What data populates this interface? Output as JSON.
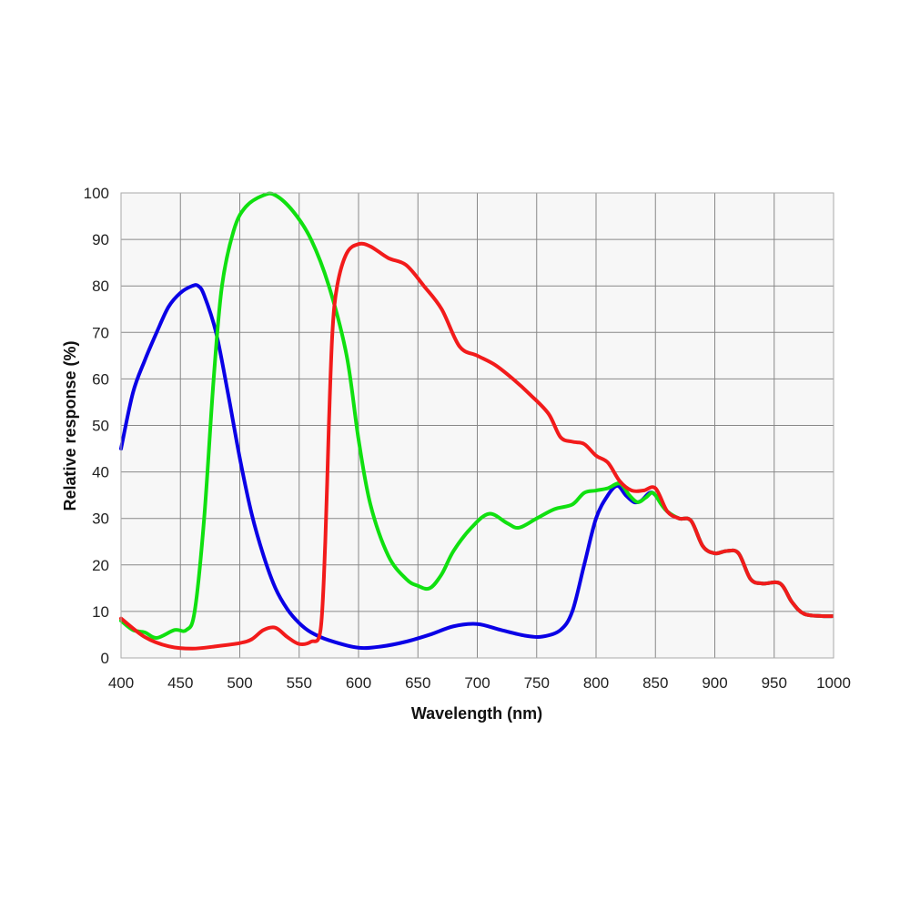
{
  "chart_data": {
    "type": "line",
    "title": "",
    "xlabel": "Wavelength (nm)",
    "ylabel": "Relative response (%)",
    "xlim": [
      400,
      1000
    ],
    "ylim": [
      0,
      100
    ],
    "xticks": [
      400,
      450,
      500,
      550,
      600,
      650,
      700,
      750,
      800,
      850,
      900,
      950,
      1000
    ],
    "yticks": [
      0,
      10,
      20,
      30,
      40,
      50,
      60,
      70,
      80,
      90,
      100
    ],
    "grid": true,
    "legend": null,
    "plot_background": "#f7f7f7",
    "grid_color": "#888888",
    "series": [
      {
        "name": "Blue",
        "color": "#0a00e6",
        "x": [
          400,
          410,
          420,
          430,
          440,
          450,
          460,
          465,
          470,
          480,
          490,
          500,
          510,
          520,
          530,
          540,
          550,
          560,
          575,
          600,
          620,
          640,
          660,
          680,
          700,
          720,
          740,
          755,
          770,
          780,
          790,
          800,
          810,
          818,
          825,
          832,
          838,
          845,
          850,
          860,
          870,
          880,
          890,
          900,
          910,
          920,
          930,
          940,
          955,
          965,
          975,
          990,
          1000
        ],
        "y": [
          45,
          57,
          64,
          70,
          75.5,
          78.5,
          80,
          80,
          78,
          70,
          57,
          43,
          31,
          22,
          15,
          10.5,
          7.5,
          5.5,
          3.8,
          2.2,
          2.5,
          3.5,
          5,
          6.8,
          7.3,
          6,
          4.8,
          4.6,
          6,
          10,
          20,
          30,
          35,
          37,
          35,
          33.5,
          33.8,
          35.5,
          35,
          31.5,
          30,
          29.5,
          24,
          22.5,
          23,
          22.5,
          17,
          16,
          16,
          12,
          9.5,
          9,
          9
        ]
      },
      {
        "name": "Green",
        "color": "#10e010",
        "x": [
          400,
          410,
          420,
          430,
          445,
          455,
          462,
          470,
          478,
          485,
          495,
          505,
          520,
          530,
          545,
          560,
          575,
          590,
          600,
          610,
          625,
          640,
          650,
          660,
          670,
          680,
          695,
          710,
          725,
          735,
          750,
          765,
          780,
          790,
          800,
          810,
          820,
          828,
          835,
          842,
          848,
          855,
          860,
          870,
          880,
          890,
          900,
          910,
          920,
          930,
          940,
          955,
          965,
          975,
          990,
          1000
        ],
        "y": [
          8,
          6,
          5.5,
          4.3,
          6,
          6,
          10,
          30,
          60,
          80,
          92,
          97,
          99.5,
          99.5,
          96,
          90,
          80,
          65,
          47,
          33,
          22,
          17,
          15.5,
          15,
          18,
          23,
          28,
          31,
          29,
          28,
          30,
          32,
          33,
          35.5,
          36,
          36.5,
          37.5,
          35,
          33.5,
          34.5,
          35.5,
          33,
          31.5,
          30,
          29.5,
          24,
          22.5,
          23,
          22.5,
          17,
          16,
          16,
          12,
          9.5,
          9,
          9
        ]
      },
      {
        "name": "Red",
        "color": "#f21b1b",
        "x": [
          400,
          420,
          440,
          460,
          480,
          500,
          510,
          520,
          530,
          540,
          550,
          560,
          568,
          572,
          575,
          578,
          582,
          590,
          600,
          610,
          625,
          640,
          655,
          670,
          685,
          700,
          715,
          730,
          745,
          760,
          770,
          780,
          790,
          800,
          810,
          820,
          830,
          840,
          850,
          860,
          870,
          880,
          890,
          900,
          910,
          920,
          930,
          940,
          955,
          965,
          975,
          990,
          1000
        ],
        "y": [
          8.5,
          4.5,
          2.5,
          2,
          2.5,
          3.2,
          4,
          6,
          6.5,
          4.5,
          3,
          3.5,
          6,
          25,
          50,
          70,
          80,
          87,
          89,
          88.5,
          86,
          84.5,
          80,
          75,
          67,
          65,
          63,
          60,
          56.5,
          52.5,
          47.5,
          46.5,
          46,
          43.5,
          42,
          38,
          36,
          36,
          36.5,
          31.5,
          30,
          29.5,
          24,
          22.5,
          23,
          22.5,
          17,
          16,
          16,
          12,
          9.5,
          9,
          9
        ]
      }
    ]
  }
}
